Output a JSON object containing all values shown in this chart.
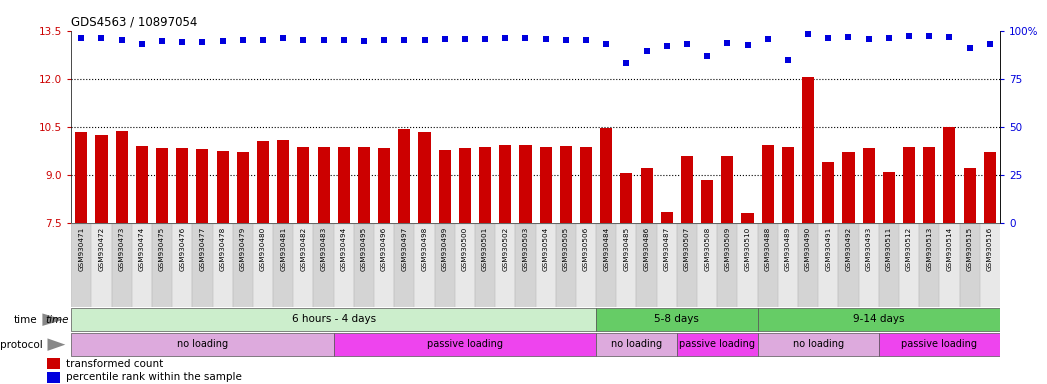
{
  "title": "GDS4563 / 10897054",
  "categories": [
    "GSM930471",
    "GSM930472",
    "GSM930473",
    "GSM930474",
    "GSM930475",
    "GSM930476",
    "GSM930477",
    "GSM930478",
    "GSM930479",
    "GSM930480",
    "GSM930481",
    "GSM930482",
    "GSM930483",
    "GSM930494",
    "GSM930495",
    "GSM930496",
    "GSM930497",
    "GSM930498",
    "GSM930499",
    "GSM930500",
    "GSM930501",
    "GSM930502",
    "GSM930503",
    "GSM930504",
    "GSM930505",
    "GSM930506",
    "GSM930484",
    "GSM930485",
    "GSM930486",
    "GSM930487",
    "GSM930507",
    "GSM930508",
    "GSM930509",
    "GSM930510",
    "GSM930488",
    "GSM930489",
    "GSM930490",
    "GSM930491",
    "GSM930492",
    "GSM930493",
    "GSM930511",
    "GSM930512",
    "GSM930513",
    "GSM930514",
    "GSM930515",
    "GSM930516"
  ],
  "bar_values": [
    10.35,
    10.25,
    10.38,
    9.9,
    9.85,
    9.83,
    9.8,
    9.75,
    9.72,
    10.05,
    10.08,
    9.88,
    9.88,
    9.88,
    9.88,
    9.85,
    10.42,
    10.35,
    9.78,
    9.83,
    9.88,
    9.93,
    9.93,
    9.88,
    9.9,
    9.88,
    10.45,
    9.05,
    9.2,
    7.85,
    9.6,
    8.85,
    9.6,
    7.8,
    9.93,
    9.88,
    12.05,
    9.4,
    9.72,
    9.82,
    9.1,
    9.88,
    9.88,
    10.48,
    9.2,
    9.72
  ],
  "scatter_values": [
    13.28,
    13.28,
    13.2,
    13.08,
    13.18,
    13.16,
    13.16,
    13.18,
    13.2,
    13.22,
    13.26,
    13.22,
    13.22,
    13.22,
    13.18,
    13.22,
    13.22,
    13.22,
    13.24,
    13.24,
    13.24,
    13.26,
    13.26,
    13.24,
    13.22,
    13.2,
    13.1,
    12.5,
    12.88,
    13.02,
    13.1,
    12.72,
    13.12,
    13.05,
    13.25,
    12.6,
    13.4,
    13.28,
    13.3,
    13.25,
    13.28,
    13.32,
    13.34,
    13.3,
    12.95,
    13.1
  ],
  "ymin": 7.5,
  "ymax": 13.5,
  "yticks_left": [
    7.5,
    9.0,
    10.5,
    12.0,
    13.5
  ],
  "yticks_right_pct": [
    0,
    25,
    50,
    75,
    100
  ],
  "yticks_right_labels": [
    "0",
    "25",
    "50",
    "75",
    "100%"
  ],
  "bar_color": "#cc0000",
  "scatter_color": "#0000dd",
  "dotted_lines": [
    9.0,
    10.5,
    12.0
  ],
  "time_label_color": "#888888",
  "time_groups": [
    {
      "label": "6 hours - 4 days",
      "start": 0,
      "end": 25,
      "color": "#cceecc"
    },
    {
      "label": "5-8 days",
      "start": 26,
      "end": 33,
      "color": "#66cc66"
    },
    {
      "label": "9-14 days",
      "start": 34,
      "end": 45,
      "color": "#66cc66"
    }
  ],
  "protocol_groups": [
    {
      "label": "no loading",
      "start": 0,
      "end": 12,
      "color": "#ddaadd"
    },
    {
      "label": "passive loading",
      "start": 13,
      "end": 25,
      "color": "#ee44ee"
    },
    {
      "label": "no loading",
      "start": 26,
      "end": 29,
      "color": "#ddaadd"
    },
    {
      "label": "passive loading",
      "start": 30,
      "end": 33,
      "color": "#ee44ee"
    },
    {
      "label": "no loading",
      "start": 34,
      "end": 39,
      "color": "#ddaadd"
    },
    {
      "label": "passive loading",
      "start": 40,
      "end": 45,
      "color": "#ee44ee"
    }
  ],
  "col_bg_even": "#d4d4d4",
  "col_bg_odd": "#e8e8e8",
  "legend_bar_color": "#cc0000",
  "legend_scatter_color": "#0000dd",
  "legend_bar_label": "transformed count",
  "legend_scatter_label": "percentile rank within the sample"
}
